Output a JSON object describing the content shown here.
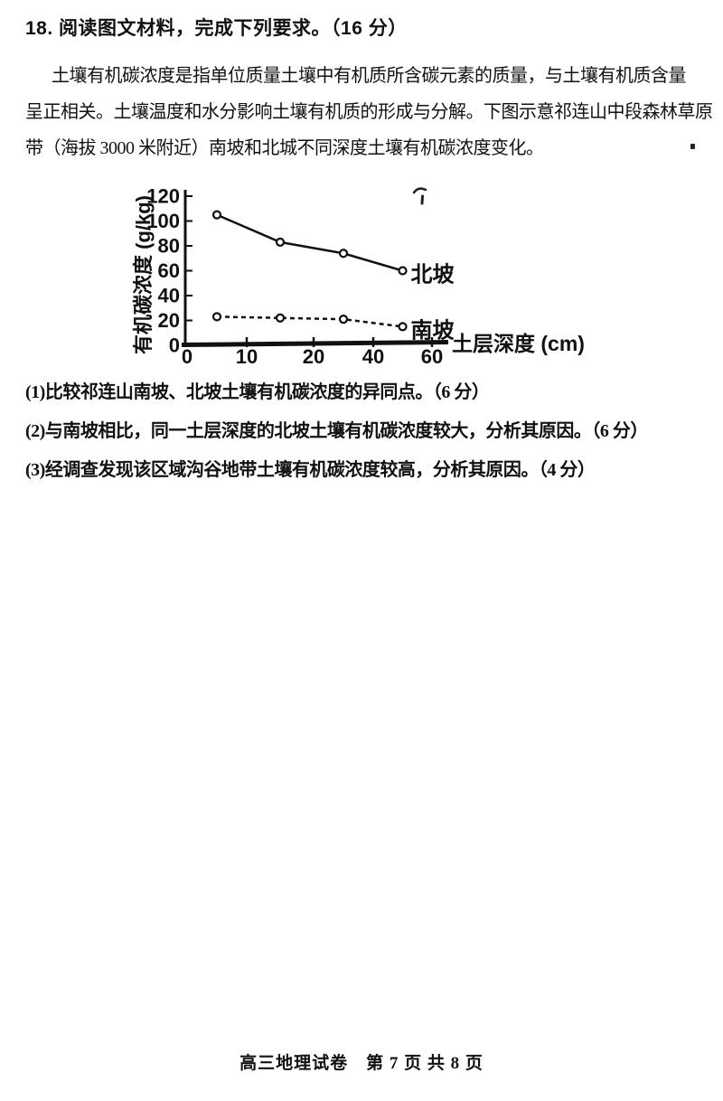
{
  "exam": {
    "question": {
      "heading": "18. 阅读图文材料，完成下列要求。（16 分）",
      "material_lines": [
        "土壤有机碳浓度是指单位质量土壤中有机质所含碳元素的质量，与土壤有机质含量",
        "呈正相关。土壤温度和水分影响土壤有机质的形成与分解。下图示意祁连山中段森林草原",
        "带（海拔 3000 米附近）南坡和北城不同深度土壤有机碳浓度变化。"
      ],
      "sub_questions": [
        "(1)比较祁连山南坡、北坡土壤有机碳浓度的异同点。（6 分）",
        "(2)与南坡相比，同一土层深度的北坡土壤有机碳浓度较大，分析其原因。（6 分）",
        "(3)经调查发现该区域沟谷地带土壤有机碳浓度较高，分析其原因。（4 分）"
      ]
    },
    "footer": "高三地理试卷　第 7 页 共 8 页"
  },
  "chart_data": {
    "type": "line",
    "title": "",
    "xlabel": "土层深度 (cm)",
    "ylabel": "有机碳浓度 (g/kg)",
    "x_ticks": [
      0,
      10,
      20,
      40,
      60
    ],
    "y_ticks": [
      0,
      20,
      40,
      60,
      80,
      100,
      120
    ],
    "ylim": [
      0,
      120
    ],
    "x": [
      5,
      15,
      30,
      50
    ],
    "series": [
      {
        "name": "北坡",
        "line_style": "solid",
        "marker": "open-circle",
        "values": [
          105,
          83,
          74,
          60
        ]
      },
      {
        "name": "南坡",
        "line_style": "dashed",
        "marker": "open-circle",
        "values": [
          23,
          22,
          21,
          15
        ]
      }
    ],
    "legend_position": "labels-at-line-ends",
    "grid": false,
    "axis_color": "#111111",
    "note": "x axis ticks 0,10,20,40,60 are equally spaced (non-linear scale)"
  }
}
